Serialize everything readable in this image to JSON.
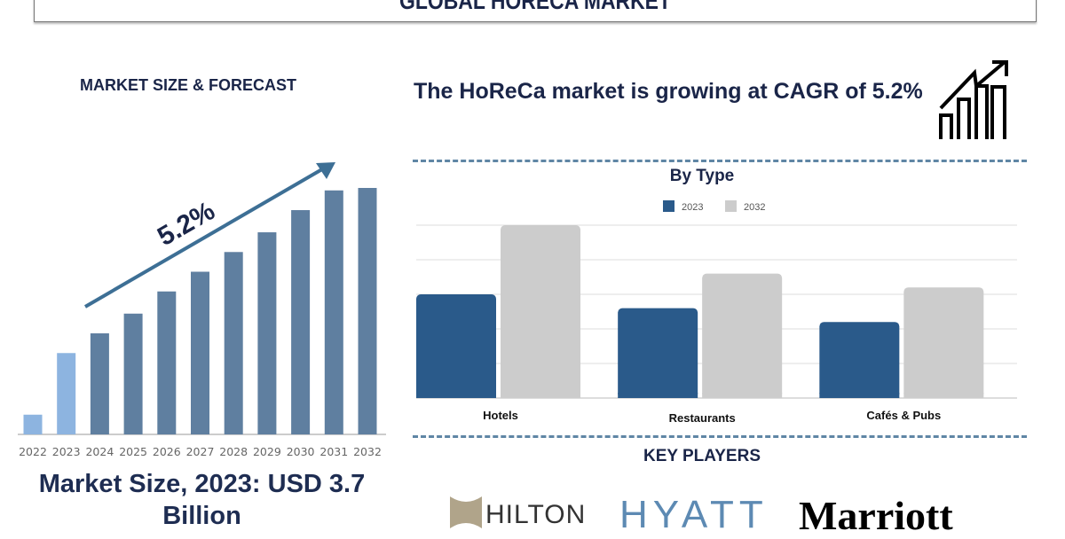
{
  "header": {
    "title": "GLOBAL HORECA MARKET"
  },
  "left": {
    "heading": "MARKET SIZE & FORECAST",
    "cagr_label": "5.2%",
    "market_size": "Market Size, 2023: USD 3.7 Billion"
  },
  "right": {
    "cagr_text": "The HoReCa market is growing at CAGR of 5.2%",
    "icon": "growth-chart-icon",
    "key_players_heading": "KEY PLAYERS",
    "key_players": [
      "HILTON",
      "HYATT",
      "Marriott"
    ]
  },
  "chart_data": [
    {
      "type": "bar",
      "title": "",
      "categories": [
        "2022",
        "2023",
        "2024",
        "2025",
        "2026",
        "2027",
        "2028",
        "2029",
        "2030",
        "2031",
        "2032"
      ],
      "values": [
        8,
        33,
        41,
        49,
        58,
        66,
        74,
        82,
        91,
        99,
        100
      ],
      "ylim": [
        0,
        100
      ],
      "grid": false,
      "colors": {
        "historical": "#8db4e0",
        "forecast": "#5f7fa0"
      },
      "annotation": "5.2%"
    },
    {
      "type": "bar",
      "title": "By Type",
      "categories": [
        "Hotels",
        "Restaurants",
        "Cafés & Pubs"
      ],
      "series": [
        {
          "name": "2023",
          "values": [
            3.0,
            2.6,
            2.2
          ],
          "color": "#2a5a8a"
        },
        {
          "name": "2032",
          "values": [
            5.0,
            3.6,
            3.2
          ],
          "color": "#cccccc"
        }
      ],
      "ylim": [
        0,
        5
      ],
      "grid": true,
      "legend": "top-center"
    }
  ]
}
